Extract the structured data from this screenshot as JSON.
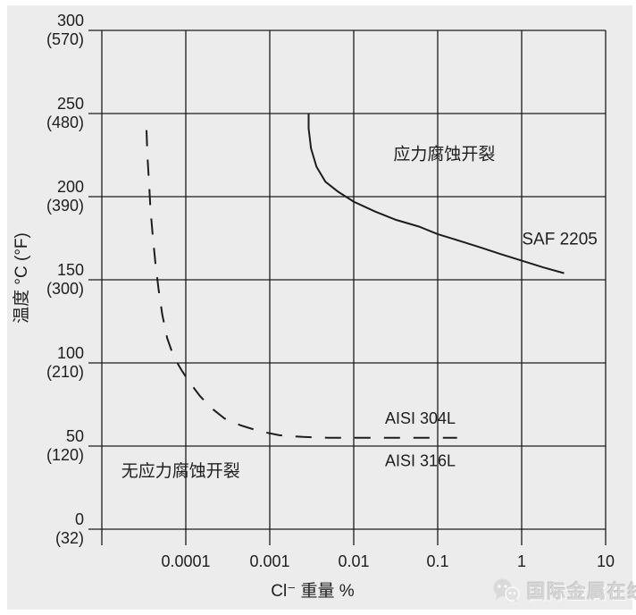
{
  "colors": {
    "page": "#ffffff",
    "background": "#ececec",
    "line": "#1c1c1c",
    "text": "#1e1e1e",
    "watermark": "#d7d7d7"
  },
  "watermark": {
    "icon": "wechat-icon",
    "text": "国际金属在线"
  },
  "chart_data": {
    "type": "line",
    "x_scale": "log",
    "grid": true,
    "title": "",
    "xlabel": "Cl⁻ 重量 %",
    "ylabel": "温度 °C (°F)",
    "xlim": [
      1e-05,
      10
    ],
    "ylim": [
      0,
      300
    ],
    "x_ticks": [
      {
        "value": 0.0001,
        "label": "0.0001"
      },
      {
        "value": 0.001,
        "label": "0.001"
      },
      {
        "value": 0.01,
        "label": "0.01"
      },
      {
        "value": 0.1,
        "label": "0.1"
      },
      {
        "value": 1,
        "label": "1"
      },
      {
        "value": 10,
        "label": "10"
      }
    ],
    "y_ticks": [
      {
        "value": 300,
        "label": "300",
        "sublabel": "(570)"
      },
      {
        "value": 250,
        "label": "250",
        "sublabel": "(480)"
      },
      {
        "value": 200,
        "label": "200",
        "sublabel": "(390)"
      },
      {
        "value": 150,
        "label": "150",
        "sublabel": "(300)"
      },
      {
        "value": 100,
        "label": "100",
        "sublabel": "(210)"
      },
      {
        "value": 50,
        "label": "50",
        "sublabel": "(120)"
      },
      {
        "value": 0,
        "label": "0",
        "sublabel": "(32)"
      }
    ],
    "series": [
      {
        "name": "SAF 2205",
        "style": "solid",
        "points": [
          [
            0.0029,
            250
          ],
          [
            0.0029,
            241
          ],
          [
            0.0031,
            229
          ],
          [
            0.0036,
            218
          ],
          [
            0.0046,
            209
          ],
          [
            0.0065,
            203
          ],
          [
            0.01,
            197
          ],
          [
            0.018,
            191
          ],
          [
            0.032,
            186
          ],
          [
            0.06,
            182
          ],
          [
            0.1,
            177.5
          ],
          [
            0.18,
            173.5
          ],
          [
            0.32,
            169.5
          ],
          [
            0.56,
            165.5
          ],
          [
            1.0,
            161.5
          ],
          [
            1.8,
            157.5
          ],
          [
            3.2,
            154
          ]
        ]
      },
      {
        "name": "AISI 304L / AISI 316L",
        "style": "dashed",
        "points": [
          [
            3.4e-05,
            240
          ],
          [
            3.5e-05,
            224
          ],
          [
            3.65e-05,
            208
          ],
          [
            3.8e-05,
            192
          ],
          [
            4.05e-05,
            176
          ],
          [
            4.35e-05,
            160
          ],
          [
            4.75e-05,
            144
          ],
          [
            5.25e-05,
            129
          ],
          [
            6e-05,
            115
          ],
          [
            7.15e-05,
            104
          ],
          [
            8.8e-05,
            96
          ],
          [
            0.000112,
            88
          ],
          [
            0.000148,
            80
          ],
          [
            0.0002,
            73
          ],
          [
            0.00029,
            66.5
          ],
          [
            0.00045,
            62.5
          ],
          [
            0.00075,
            59
          ],
          [
            0.0013,
            56.5
          ],
          [
            0.0025,
            55.5
          ],
          [
            0.005,
            55
          ],
          [
            0.012,
            55
          ],
          [
            0.03,
            55
          ],
          [
            0.08,
            55
          ],
          [
            0.17,
            55
          ]
        ]
      }
    ],
    "annotations": [
      {
        "id": "region-scc",
        "text": "应力腐蚀开裂",
        "x": 0.12,
        "t": 225,
        "anchor": "middle",
        "size": 19
      },
      {
        "id": "label-saf2205",
        "text": "SAF 2205",
        "x": 8,
        "t": 174,
        "anchor": "end",
        "size": 19
      },
      {
        "id": "label-aisi304l",
        "text": "AISI 304L",
        "x": 0.062,
        "t": 66,
        "anchor": "middle",
        "size": 18
      },
      {
        "id": "label-aisi316l",
        "text": "AISI 316L",
        "x": 0.062,
        "t": 40.5,
        "anchor": "middle",
        "size": 18
      },
      {
        "id": "region-no-scc",
        "text": "无应力腐蚀开裂",
        "x": 8.7e-05,
        "t": 34.5,
        "anchor": "middle",
        "size": 19
      }
    ]
  }
}
